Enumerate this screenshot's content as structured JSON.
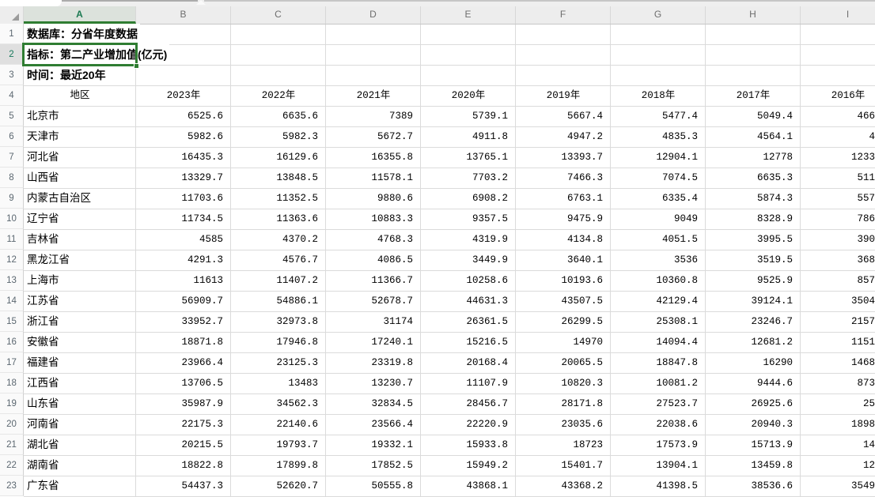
{
  "colors": {
    "accent_green": "#2F7D32",
    "selected_header_text_green": "#1C7A52",
    "gridline_gray": "#DBDBDB",
    "header_bg_gray": "#EDEDED"
  },
  "sheet": {
    "column_letters": [
      "A",
      "B",
      "C",
      "D",
      "E",
      "F",
      "G",
      "H",
      "I"
    ],
    "row_numbers": [
      1,
      2,
      3,
      4,
      5,
      6,
      7,
      8,
      9,
      10,
      11,
      12,
      13,
      14,
      15,
      16,
      17,
      18,
      19,
      20,
      21,
      22,
      23
    ],
    "selected_cell": "A2",
    "selected_column": "A",
    "selected_row": 2,
    "meta_rows": [
      {
        "row": 1,
        "label": "数据库：分省年度数据"
      },
      {
        "row": 2,
        "label": "指标：第二产业增加值(亿元)"
      },
      {
        "row": 3,
        "label": "时间：最近20年"
      }
    ],
    "table": {
      "header_row_number": 4,
      "header": [
        "地区",
        "2023年",
        "2022年",
        "2021年",
        "2020年",
        "2019年",
        "2018年",
        "2017年",
        "2016年"
      ],
      "note_last_column": "2016年 column is clipped by the window edge; values below are the visible digits",
      "rows": [
        {
          "row": 5,
          "region": "北京市",
          "values": [
            "6525.6",
            "6635.6",
            "7389",
            "5739.1",
            "5667.4",
            "5477.4",
            "5049.4",
            "466"
          ]
        },
        {
          "row": 6,
          "region": "天津市",
          "values": [
            "5982.6",
            "5982.3",
            "5672.7",
            "4911.8",
            "4947.2",
            "4835.3",
            "4564.1",
            "4"
          ]
        },
        {
          "row": 7,
          "region": "河北省",
          "values": [
            "16435.3",
            "16129.6",
            "16355.8",
            "13765.1",
            "13393.7",
            "12904.1",
            "12778",
            "1233"
          ]
        },
        {
          "row": 8,
          "region": "山西省",
          "values": [
            "13329.7",
            "13848.5",
            "11578.1",
            "7703.2",
            "7466.3",
            "7074.5",
            "6635.3",
            "511"
          ]
        },
        {
          "row": 9,
          "region": "内蒙古自治区",
          "values": [
            "11703.6",
            "11352.5",
            "9880.6",
            "6908.2",
            "6763.1",
            "6335.4",
            "5874.3",
            "557"
          ]
        },
        {
          "row": 10,
          "region": "辽宁省",
          "values": [
            "11734.5",
            "11363.6",
            "10883.3",
            "9357.5",
            "9475.9",
            "9049",
            "8328.9",
            "786"
          ]
        },
        {
          "row": 11,
          "region": "吉林省",
          "values": [
            "4585",
            "4370.2",
            "4768.3",
            "4319.9",
            "4134.8",
            "4051.5",
            "3995.5",
            "390"
          ]
        },
        {
          "row": 12,
          "region": "黑龙江省",
          "values": [
            "4291.3",
            "4576.7",
            "4086.5",
            "3449.9",
            "3640.1",
            "3536",
            "3519.5",
            "368"
          ]
        },
        {
          "row": 13,
          "region": "上海市",
          "values": [
            "11613",
            "11407.2",
            "11366.7",
            "10258.6",
            "10193.6",
            "10360.8",
            "9525.9",
            "857"
          ]
        },
        {
          "row": 14,
          "region": "江苏省",
          "values": [
            "56909.7",
            "54886.1",
            "52678.7",
            "44631.3",
            "43507.5",
            "42129.4",
            "39124.1",
            "3504"
          ]
        },
        {
          "row": 15,
          "region": "浙江省",
          "values": [
            "33952.7",
            "32973.8",
            "31174",
            "26361.5",
            "26299.5",
            "25308.1",
            "23246.7",
            "2157"
          ]
        },
        {
          "row": 16,
          "region": "安徽省",
          "values": [
            "18871.8",
            "17946.8",
            "17240.1",
            "15216.5",
            "14970",
            "14094.4",
            "12681.2",
            "1151"
          ]
        },
        {
          "row": 17,
          "region": "福建省",
          "values": [
            "23966.4",
            "23125.3",
            "23319.8",
            "20168.4",
            "20065.5",
            "18847.8",
            "16290",
            "1468"
          ]
        },
        {
          "row": 18,
          "region": "江西省",
          "values": [
            "13706.5",
            "13483",
            "13230.7",
            "11107.9",
            "10820.3",
            "10081.2",
            "9444.6",
            "873"
          ]
        },
        {
          "row": 19,
          "region": "山东省",
          "values": [
            "35987.9",
            "34562.3",
            "32834.5",
            "28456.7",
            "28171.8",
            "27523.7",
            "26925.6",
            "25"
          ]
        },
        {
          "row": 20,
          "region": "河南省",
          "values": [
            "22175.3",
            "22140.6",
            "23566.4",
            "22220.9",
            "23035.6",
            "22038.6",
            "20940.3",
            "1898"
          ]
        },
        {
          "row": 21,
          "region": "湖北省",
          "values": [
            "20215.5",
            "19793.7",
            "19332.1",
            "15933.8",
            "18723",
            "17573.9",
            "15713.9",
            "14"
          ]
        },
        {
          "row": 22,
          "region": "湖南省",
          "values": [
            "18822.8",
            "17899.8",
            "17852.5",
            "15949.2",
            "15401.7",
            "13904.1",
            "13459.8",
            "12"
          ]
        },
        {
          "row": 23,
          "region": "广东省",
          "values": [
            "54437.3",
            "52620.7",
            "50555.8",
            "43868.1",
            "43368.2",
            "41398.5",
            "38536.6",
            "3549"
          ]
        }
      ]
    }
  }
}
